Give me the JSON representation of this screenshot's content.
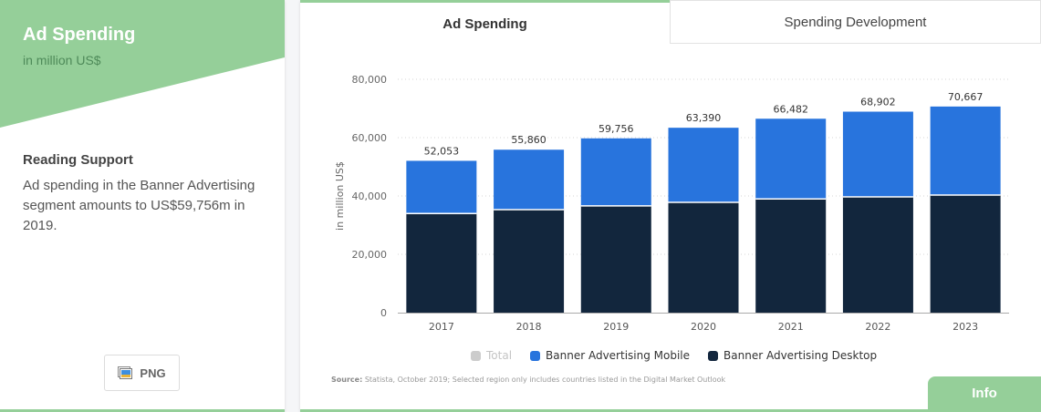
{
  "left_panel": {
    "title": "Ad Spending",
    "subtitle": "in million US$",
    "accent_color": "#95cf99",
    "reading_support_title": "Reading Support",
    "reading_support_text": "Ad spending in the Banner Advertising segment amounts to US$59,756m in 2019.",
    "download_button": {
      "label": "PNG",
      "icon": "image-icon"
    }
  },
  "tabs": [
    {
      "label": "Ad Spending",
      "active": true
    },
    {
      "label": "Spending Development",
      "active": false
    }
  ],
  "legend": [
    {
      "label": "Total",
      "color": "#cccccc",
      "enabled": false
    },
    {
      "label": "Banner Advertising Mobile",
      "color": "#2874dd",
      "enabled": true
    },
    {
      "label": "Banner Advertising Desktop",
      "color": "#12263d",
      "enabled": true
    }
  ],
  "source": {
    "label": "Source:",
    "text": "Statista, October 2019; Selected region only includes countries listed in the Digital Market Outlook"
  },
  "info_button": "Info",
  "chart_data": {
    "type": "bar",
    "stacked": true,
    "title": "Ad Spending",
    "xlabel": "",
    "ylabel": "in million US$",
    "ylim": [
      0,
      80000
    ],
    "yticks": [
      0,
      20000,
      40000,
      60000,
      80000
    ],
    "ytick_labels": [
      "0",
      "20,000",
      "40,000",
      "60,000",
      "80,000"
    ],
    "grid": true,
    "legend_position": "bottom",
    "categories": [
      "2017",
      "2018",
      "2019",
      "2020",
      "2021",
      "2022",
      "2023"
    ],
    "series": [
      {
        "name": "Banner Advertising Desktop",
        "color": "#12263d",
        "values": [
          34000,
          35300,
          36600,
          37800,
          39000,
          39700,
          40300
        ]
      },
      {
        "name": "Banner Advertising Mobile",
        "color": "#2874dd",
        "values": [
          18053,
          20560,
          23156,
          25590,
          27482,
          29202,
          30367
        ]
      }
    ],
    "totals": [
      52053,
      55860,
      59756,
      63390,
      66482,
      68902,
      70667
    ],
    "total_labels": [
      "52,053",
      "55,860",
      "59,756",
      "63,390",
      "66,482",
      "68,902",
      "70,667"
    ]
  }
}
